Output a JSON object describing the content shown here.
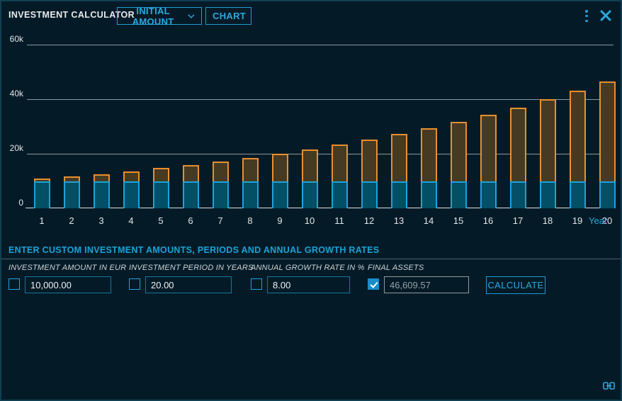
{
  "window": {
    "title": "INVESTMENT CALCULATOR",
    "dropdowns": [
      {
        "label": "INITIAL AMOUNT"
      },
      {
        "label": "CHART"
      }
    ],
    "icons": {
      "menu": "kebab-menu-icon",
      "close": "close-icon",
      "footer": "link-icon"
    }
  },
  "colors": {
    "background": "#041b27",
    "accent_cyan": "#2aa9dd",
    "bar_initial_fill": "#024f66",
    "bar_initial_stroke": "#1ba3db",
    "bar_growth_fill": "#463a23",
    "bar_growth_stroke": "#e98f2e"
  },
  "chart_data": {
    "type": "bar",
    "stacked": true,
    "title": "",
    "xlabel": "Year",
    "ylabel": "",
    "ylim": [
      0,
      63000
    ],
    "grid": true,
    "legend": "none",
    "categories": [
      1,
      2,
      3,
      4,
      5,
      6,
      7,
      8,
      9,
      10,
      11,
      12,
      13,
      14,
      15,
      16,
      17,
      18,
      19,
      20
    ],
    "yticks": [
      {
        "value": 0,
        "label": "0"
      },
      {
        "value": 20000,
        "label": "20k"
      },
      {
        "value": 40000,
        "label": "40k"
      },
      {
        "value": 60000,
        "label": "60k"
      }
    ],
    "series": [
      {
        "name": "initial-amount",
        "values": [
          10000,
          10000,
          10000,
          10000,
          10000,
          10000,
          10000,
          10000,
          10000,
          10000,
          10000,
          10000,
          10000,
          10000,
          10000,
          10000,
          10000,
          10000,
          10000,
          10000
        ]
      },
      {
        "name": "growth",
        "values": [
          800,
          1664,
          2597,
          3605,
          4693,
          5869,
          7138,
          8509,
          9990,
          11589,
          13316,
          15182,
          17196,
          19372,
          21722,
          24259,
          27000,
          29960,
          33157,
          36610
        ]
      }
    ],
    "totals": [
      10800,
      11664,
      12597,
      13605,
      14693,
      15869,
      17138,
      18509,
      19990,
      21589,
      23316,
      25182,
      27196,
      29372,
      31722,
      34259,
      37000,
      39960,
      43157,
      46610
    ]
  },
  "form": {
    "heading": "ENTER CUSTOM INVESTMENT AMOUNTS, PERIODS AND ANNUAL GROWTH RATES",
    "fields": [
      {
        "label": "INVESTMENT AMOUNT IN EUR",
        "value": "10,000.00",
        "checked": false,
        "disabled": false
      },
      {
        "label": "INVESTMENT PERIOD IN YEARS",
        "value": "20.00",
        "checked": false,
        "disabled": false
      },
      {
        "label": "ANNUAL GROWTH RATE IN %",
        "value": "8.00",
        "checked": false,
        "disabled": false
      },
      {
        "label": "FINAL ASSETS",
        "value": "46,609.57",
        "checked": true,
        "disabled": true
      }
    ],
    "calculate_label": "CALCULATE"
  }
}
